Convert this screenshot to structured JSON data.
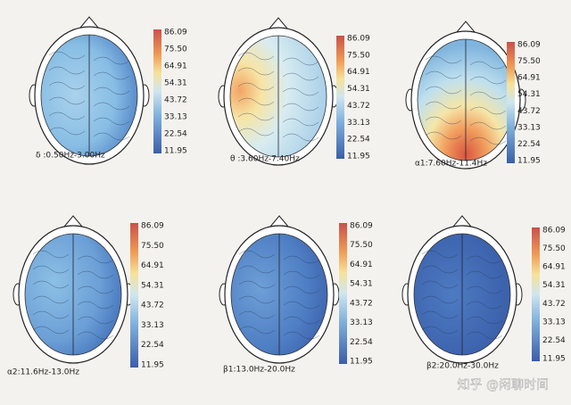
{
  "panels": [
    {
      "label": "δ :0.50Hz-3.00Hz",
      "colorbar_ticks": [
        "86.09",
        "75.50",
        "64.91",
        "54.31",
        "43.72",
        "33.13",
        "22.54",
        "11.95"
      ]
    },
    {
      "label": "θ :3.60Hz-7.40Hz",
      "colorbar_ticks": [
        "86.09",
        "75.50",
        "64.91",
        "54.31",
        "43.72",
        "33.13",
        "22.54",
        "11.95"
      ]
    },
    {
      "label": "α1:7.60Hz-11.4Hz",
      "colorbar_ticks": [
        "86.09",
        "75.50",
        "64.91",
        "54.31",
        "43.72",
        "33.13",
        "22.54",
        "11.95"
      ]
    },
    {
      "label": "α2:11.6Hz-13.0Hz",
      "colorbar_ticks": [
        "86.09",
        "75.50",
        "64.91",
        "54.31",
        "43.72",
        "33.13",
        "22.54",
        "11.95"
      ]
    },
    {
      "label": "β1:13.0Hz-20.0Hz",
      "colorbar_ticks": [
        "86.09",
        "75.50",
        "64.91",
        "54.31",
        "43.72",
        "33.13",
        "22.54",
        "11.95"
      ]
    },
    {
      "label": "β2:20.0Hz-30.0Hz",
      "colorbar_ticks": [
        "86.09",
        "75.50",
        "64.91",
        "54.31",
        "43.72",
        "33.13",
        "22.54",
        "11.95"
      ]
    }
  ],
  "watermark": "知乎 @闲聊时间"
}
